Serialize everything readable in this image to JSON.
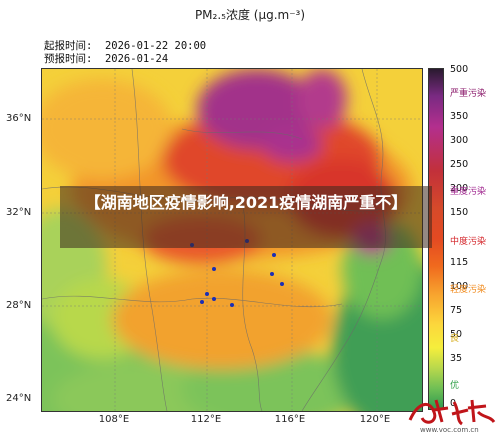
{
  "header": {
    "title": "PM₂.₅浓度 (μg.m⁻³)",
    "issue_time": "起报时间:  2026-01-22 20:00",
    "forecast_time": "预报时间:  2026-01-24"
  },
  "axes": {
    "y_labels": [
      "36°N",
      "32°N",
      "28°N",
      "24°N"
    ],
    "x_labels": [
      "108°E",
      "112°E",
      "116°E",
      "120°E"
    ]
  },
  "colorbar": {
    "ticks": [
      "500",
      "350",
      "300",
      "250",
      "200",
      "150",
      "115",
      "100",
      "75",
      "50",
      "35",
      "0"
    ],
    "categories": [
      {
        "label": "严重污染",
        "color": "#8b1a6b"
      },
      {
        "label": "重度污染",
        "color": "#a0278f"
      },
      {
        "label": "中度污染",
        "color": "#d4262b"
      },
      {
        "label": "轻度污染",
        "color": "#f08a1c"
      },
      {
        "label": "良",
        "color": "#f1c40f"
      },
      {
        "label": "优",
        "color": "#2e9e46"
      }
    ]
  },
  "overlay": {
    "headline": "【湖南地区疫情影响,2021疫情湖南严重不】"
  },
  "watermark": {
    "brand": "華聲在綫",
    "url": "www.voc.com.cn"
  },
  "legend_colors": {
    "good": "#7dc35a",
    "moderate": "#f6e040",
    "light": "#f49a2c",
    "medium": "#e44a22",
    "heavy": "#a6277a",
    "severe": "#3a1840"
  }
}
